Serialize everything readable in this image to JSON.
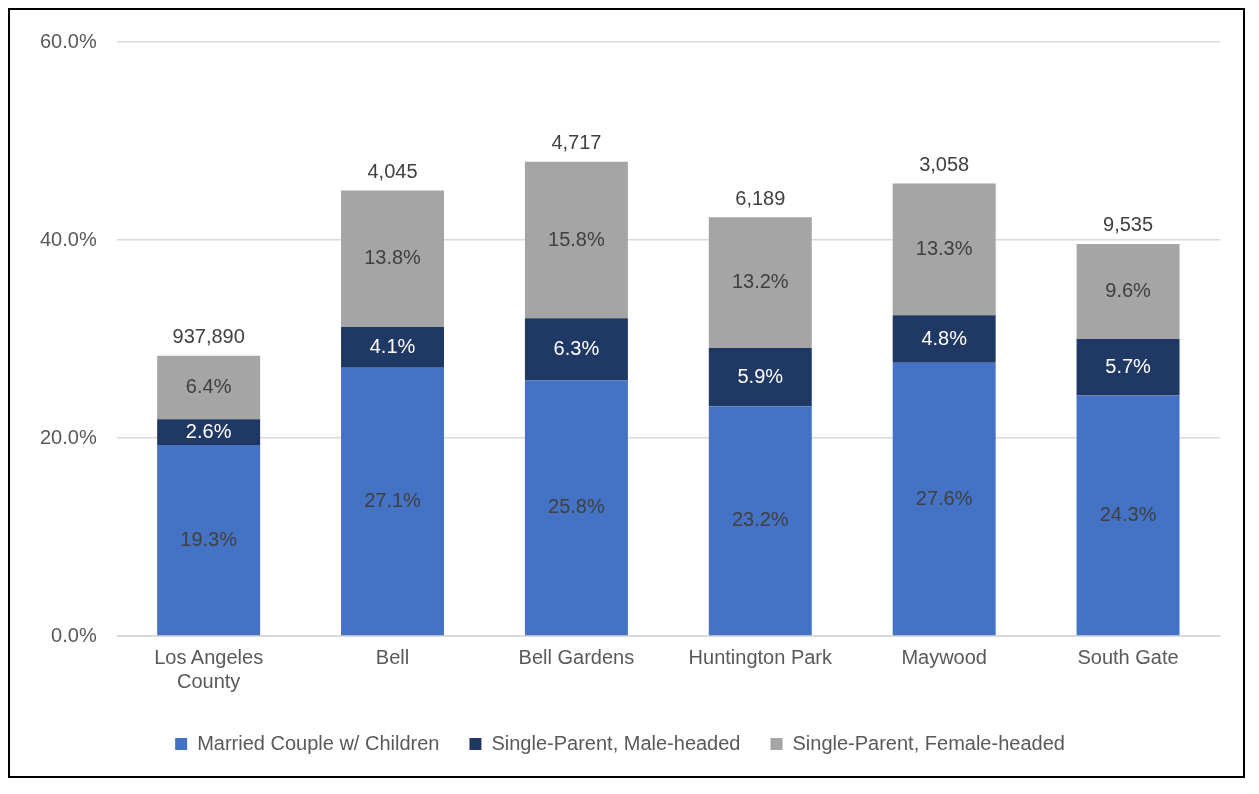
{
  "chart_data": {
    "type": "bar",
    "stacked": true,
    "categories": [
      "Los Angeles County",
      "Bell",
      "Bell Gardens",
      "Huntington Park",
      "Maywood",
      "South Gate"
    ],
    "series": [
      {
        "name": "Married Couple w/ Children",
        "color": "#4472c4",
        "values": [
          19.3,
          27.1,
          25.8,
          23.2,
          27.6,
          24.3
        ],
        "value_labels": [
          "19.3%",
          "27.1%",
          "25.8%",
          "23.2%",
          "27.6%",
          "24.3%"
        ]
      },
      {
        "name": "Single-Parent, Male-headed",
        "color": "#203864",
        "values": [
          2.6,
          4.1,
          6.3,
          5.9,
          4.8,
          5.7
        ],
        "value_labels": [
          "2.6%",
          "4.1%",
          "6.3%",
          "5.9%",
          "4.8%",
          "5.7%"
        ]
      },
      {
        "name": "Single-Parent, Female-headed",
        "color": "#a5a5a5",
        "values": [
          6.4,
          13.8,
          15.8,
          13.2,
          13.3,
          9.6
        ],
        "value_labels": [
          "6.4%",
          "13.8%",
          "15.8%",
          "13.2%",
          "13.3%",
          "9.6%"
        ]
      }
    ],
    "annotations": [
      {
        "text": "937,890",
        "x": "Los Angeles County",
        "y": 28.3
      },
      {
        "text": "4,045",
        "x": "Bell",
        "y": 45
      },
      {
        "text": "4,717",
        "x": "Bell Gardens",
        "y": 47.9
      },
      {
        "text": "6,189",
        "x": "Huntington Park",
        "y": 42.3
      },
      {
        "text": "3,058",
        "x": "Maywood",
        "y": 45.7
      },
      {
        "text": "9,535",
        "x": "South Gate",
        "y": 39.6
      }
    ],
    "ylim": [
      0,
      60
    ],
    "yticks": [
      {
        "value": 0,
        "label": "0.0%"
      },
      {
        "value": 20,
        "label": "20.0%"
      },
      {
        "value": 40,
        "label": "40.0%"
      },
      {
        "value": 60,
        "label": "60.0%"
      }
    ],
    "grid": "y",
    "legend": "bottom"
  }
}
